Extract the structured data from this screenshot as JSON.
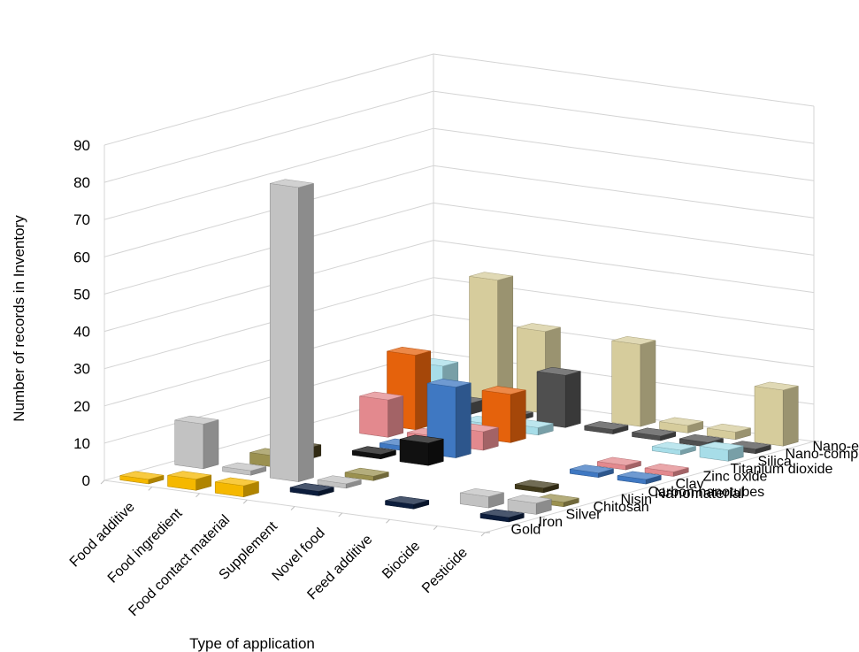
{
  "chart_data": {
    "type": "bar3d",
    "title": "",
    "ylabel": "Number of records in Inventory",
    "xlabel": "Type of application",
    "zlabel": "Nanomaterial",
    "ylim": [
      0,
      90
    ],
    "yticks": [
      0,
      10,
      20,
      30,
      40,
      50,
      60,
      70,
      80,
      90
    ],
    "grid": true,
    "applications": [
      "Food additive",
      "Food ingredient",
      "Food contact material",
      "Supplement",
      "Novel food",
      "Feed additive",
      "Biocide",
      "Pesticide"
    ],
    "nanomaterials": [
      "Gold",
      "Iron",
      "Silver",
      "Chitosan",
      "Nisin",
      "Carbon nanotubes",
      "Clay",
      "Zinc oxide",
      "Titanium dioxide",
      "Silica",
      "Nano-composite",
      "Nano-encapsulate"
    ],
    "series": [
      {
        "name": "Gold",
        "color": "#f5b800",
        "values": [
          1,
          3,
          3,
          0,
          0,
          0,
          0,
          0
        ]
      },
      {
        "name": "Iron",
        "color": "#0c1d3c",
        "values": [
          0,
          0,
          0,
          1,
          0,
          1,
          0,
          1
        ]
      },
      {
        "name": "Silver",
        "color": "#c2c2c2",
        "values": [
          12,
          1,
          79,
          1,
          0,
          0,
          3,
          3
        ]
      },
      {
        "name": "Chitosan",
        "color": "#9b9150",
        "values": [
          0,
          3,
          0,
          1,
          0,
          0,
          0,
          1
        ]
      },
      {
        "name": "Nisin",
        "color": "#423b1c",
        "values": [
          0,
          3,
          0,
          0,
          0,
          0,
          1,
          0
        ]
      },
      {
        "name": "Carbon nanotubes",
        "color": "#111111",
        "values": [
          0,
          0,
          1,
          6,
          0,
          0,
          0,
          0
        ]
      },
      {
        "name": "Clay",
        "color": "#3f78c2",
        "values": [
          0,
          0,
          1,
          19,
          0,
          0,
          1,
          1
        ]
      },
      {
        "name": "Zinc oxide",
        "color": "#e3898e",
        "values": [
          0,
          10,
          2,
          5,
          0,
          0,
          1,
          1
        ]
      },
      {
        "name": "Titanium dioxide",
        "color": "#e5620c",
        "values": [
          0,
          20,
          0,
          13,
          0,
          0,
          0,
          0
        ]
      },
      {
        "name": "Silica",
        "color": "#a7dde8",
        "values": [
          0,
          15,
          1,
          2,
          0,
          0,
          1,
          3
        ]
      },
      {
        "name": "Nano-composite",
        "color": "#4f4f4f",
        "values": [
          0,
          3,
          1,
          14,
          1,
          1,
          1,
          1
        ]
      },
      {
        "name": "Nano-encapsulate",
        "color": "#d6cc9c",
        "values": [
          0,
          34,
          22,
          0,
          22,
          2,
          2,
          15
        ]
      }
    ]
  }
}
